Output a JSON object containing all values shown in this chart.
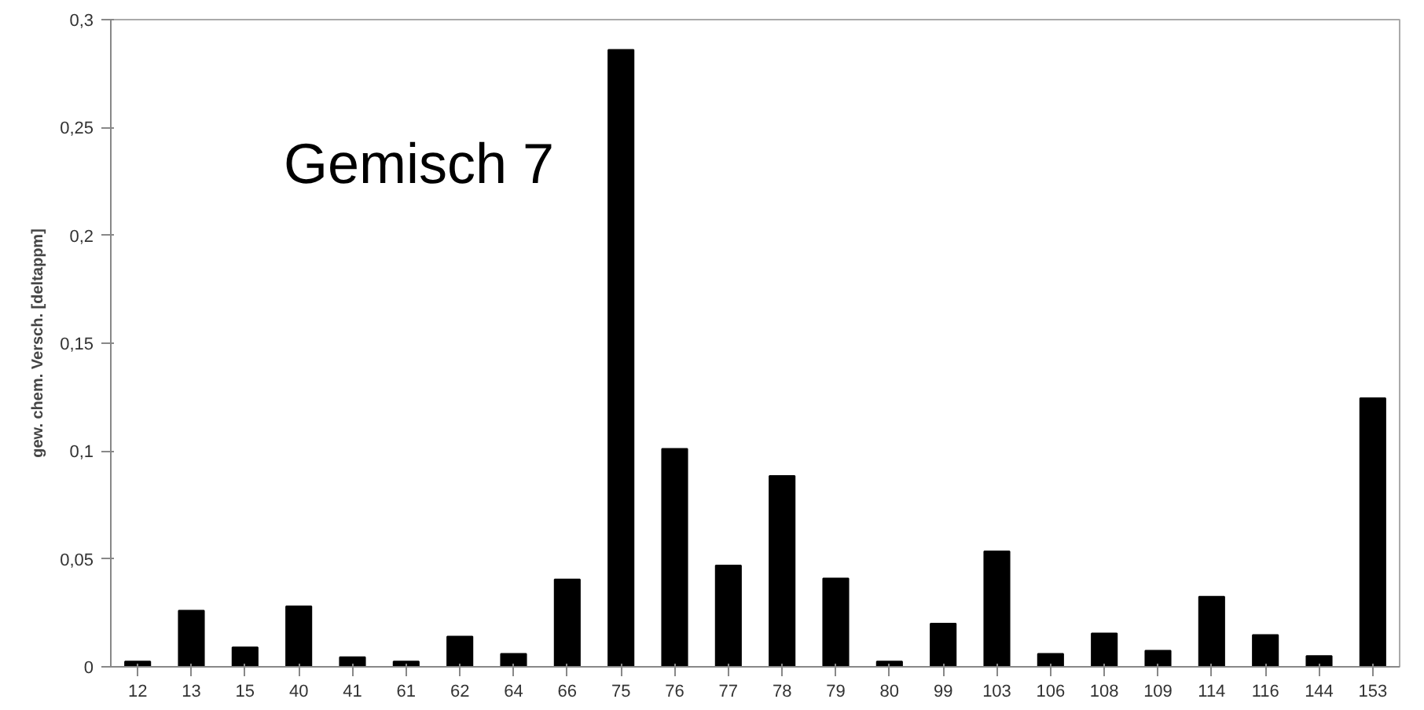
{
  "chart_data": {
    "type": "bar",
    "ylabel": "gew. chem. Versch. [deltappm]",
    "annotations": [
      "Gemisch 7"
    ],
    "categories": [
      "12",
      "13",
      "15",
      "40",
      "41",
      "61",
      "62",
      "64",
      "66",
      "75",
      "76",
      "77",
      "78",
      "79",
      "80",
      "99",
      "103",
      "106",
      "108",
      "109",
      "114",
      "116",
      "144",
      "153"
    ],
    "values": [
      0.0025,
      0.026,
      0.009,
      0.028,
      0.0045,
      0.0025,
      0.014,
      0.006,
      0.0405,
      0.286,
      0.101,
      0.047,
      0.0885,
      0.041,
      0.0025,
      0.02,
      0.0535,
      0.006,
      0.0155,
      0.0075,
      0.0325,
      0.0147,
      0.005,
      0.1245
    ],
    "color": "#000000",
    "ylim": [
      0,
      0.3
    ],
    "yticks": [
      {
        "value": 0,
        "label": "0"
      },
      {
        "value": 0.05,
        "label": "0,05"
      },
      {
        "value": 0.1,
        "label": "0,1"
      },
      {
        "value": 0.15,
        "label": "0,15"
      },
      {
        "value": 0.2,
        "label": "0,2"
      },
      {
        "value": 0.25,
        "label": "0,25"
      },
      {
        "value": 0.3,
        "label": "0,3"
      }
    ],
    "grid": false
  }
}
